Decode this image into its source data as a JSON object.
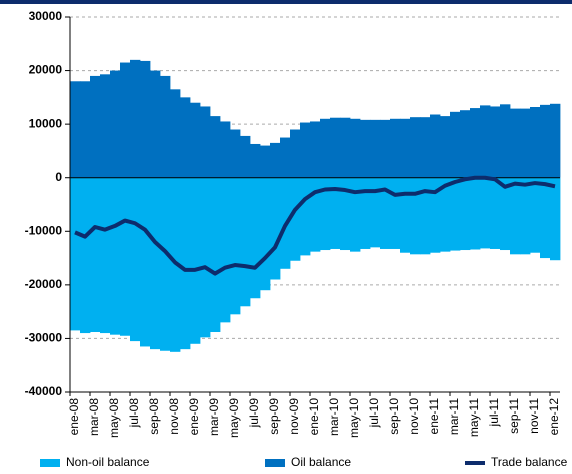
{
  "chart_data": {
    "type": "stepped-area-line",
    "categories": [
      "ene-08",
      null,
      "mar-08",
      null,
      "may-08",
      null,
      "jul-08",
      null,
      "sep-08",
      null,
      "nov-08",
      null,
      "ene-09",
      null,
      "mar-09",
      null,
      "may-09",
      null,
      "jul-09",
      null,
      "sep-09",
      null,
      "nov-09",
      null,
      "ene-10",
      null,
      "mar-10",
      null,
      "may-10",
      null,
      "jul-10",
      null,
      "sep-10",
      null,
      "nov-10",
      null,
      "ene-11",
      null,
      "mar-11",
      null,
      "may-11",
      null,
      "jul-11",
      null,
      "sep-11",
      null,
      "nov-11",
      null,
      "ene-12"
    ],
    "series": [
      {
        "name": "Non-oil balance",
        "color": "#00b0f0",
        "kind": "area",
        "values": [
          -28500,
          -29000,
          -28800,
          -29000,
          -29300,
          -29500,
          -30500,
          -31500,
          -32000,
          -32300,
          -32500,
          -32000,
          -31000,
          -29800,
          -28800,
          -27000,
          -25500,
          -24000,
          -22500,
          -21000,
          -19000,
          -17000,
          -15500,
          -14500,
          -13800,
          -13500,
          -13300,
          -13500,
          -13800,
          -13300,
          -13000,
          -13300,
          -13300,
          -14000,
          -14300,
          -14300,
          -14000,
          -13800,
          -13600,
          -13500,
          -13400,
          -13200,
          -13300,
          -13500,
          -14300,
          -14300,
          -14000,
          -15000,
          -15400
        ]
      },
      {
        "name": "Oil balance",
        "color": "#0070c0",
        "kind": "area",
        "values": [
          18000,
          18000,
          19000,
          19300,
          20000,
          21500,
          22000,
          21800,
          20000,
          19000,
          16500,
          15000,
          14000,
          13300,
          11500,
          10500,
          9000,
          7800,
          6300,
          6000,
          6500,
          7500,
          9000,
          10300,
          10500,
          11000,
          11200,
          11200,
          11000,
          10800,
          10800,
          10800,
          11000,
          11000,
          11300,
          11300,
          11800,
          11500,
          12300,
          12600,
          13000,
          13500,
          13300,
          13700,
          12900,
          12900,
          13200,
          13600,
          13800
        ]
      },
      {
        "name": "Trade balance",
        "color": "#0d2c6c",
        "kind": "line",
        "values": [
          -10200,
          -11000,
          -9200,
          -9700,
          -9000,
          -8000,
          -8500,
          -9700,
          -12000,
          -13700,
          -15800,
          -17200,
          -17200,
          -16700,
          -17900,
          -16800,
          -16300,
          -16500,
          -16800,
          -15000,
          -13000,
          -9000,
          -6000,
          -4000,
          -2700,
          -2200,
          -2100,
          -2300,
          -2700,
          -2500,
          -2500,
          -2200,
          -3200,
          -3000,
          -3000,
          -2500,
          -2700,
          -1500,
          -800,
          -300,
          0,
          0,
          -300,
          -1700,
          -1100,
          -1300,
          -1000,
          -1200,
          -1600
        ]
      }
    ],
    "ylim": [
      -40000,
      30000
    ],
    "yticks": [
      -40000,
      -30000,
      -20000,
      -10000,
      0,
      10000,
      20000,
      30000
    ],
    "grid": true
  }
}
